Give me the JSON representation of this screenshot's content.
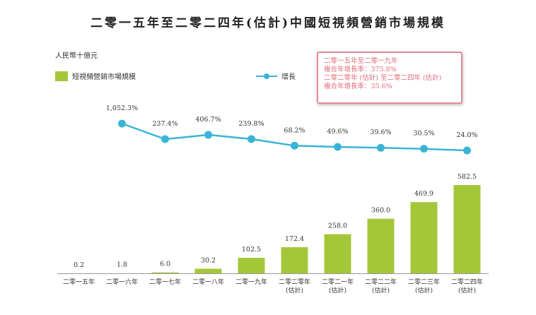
{
  "title": "二零一五年至二零二四年(估計)中國短視頻營銷市場規模",
  "unit_label": "人民幣十億元",
  "legend": {
    "bar_label": "短視頻營銷市場規模",
    "line_label": "增長"
  },
  "cagr_box": {
    "line1": "二零一五年至二零一九年",
    "line2": "複合年增長率：375.8%",
    "line3": "二零二零年 (估計) 至二零二四年 (估計)",
    "line4": "複合年增長率：35.6%"
  },
  "colors": {
    "bar": "#a4c73a",
    "line": "#3ab4d6",
    "box_border": "#e28a95",
    "box_text": "#e06b7a"
  },
  "chart_data": {
    "type": "bar",
    "title": "二零一五年至二零二四年(估計)中國短視頻營銷市場規模",
    "ylabel": "人民幣十億元",
    "categories": [
      [
        "二零一五年"
      ],
      [
        "二零一六年"
      ],
      [
        "二零一七年"
      ],
      [
        "二零一八年"
      ],
      [
        "二零一九年"
      ],
      [
        "二零二零年",
        "(估計)"
      ],
      [
        "二零二一年",
        "(估計)"
      ],
      [
        "二零二二年",
        "(估計)"
      ],
      [
        "二零二三年",
        "(估計)"
      ],
      [
        "二零二四年",
        "(估計)"
      ]
    ],
    "series": [
      {
        "name": "短視頻營銷市場規模",
        "type": "bar",
        "values": [
          0.2,
          1.8,
          6.0,
          30.2,
          102.5,
          172.4,
          258.0,
          360.0,
          469.9,
          582.5
        ],
        "labels": [
          "0.2",
          "1.8",
          "6.0",
          "30.2",
          "102.5",
          "172.4",
          "258.0",
          "360.0",
          "469.9",
          "582.5"
        ]
      },
      {
        "name": "增長",
        "type": "line",
        "values": [
          null,
          1052.3,
          237.4,
          406.7,
          239.8,
          68.2,
          49.6,
          39.6,
          30.5,
          24.0
        ],
        "labels": [
          null,
          "1,052.3%",
          "237.4%",
          "406.7%",
          "239.8%",
          "68.2%",
          "49.6%",
          "39.6%",
          "30.5%",
          "24.0%"
        ]
      }
    ],
    "ylim": [
      0,
      582.5
    ],
    "grid": false,
    "legend_position": "top"
  }
}
